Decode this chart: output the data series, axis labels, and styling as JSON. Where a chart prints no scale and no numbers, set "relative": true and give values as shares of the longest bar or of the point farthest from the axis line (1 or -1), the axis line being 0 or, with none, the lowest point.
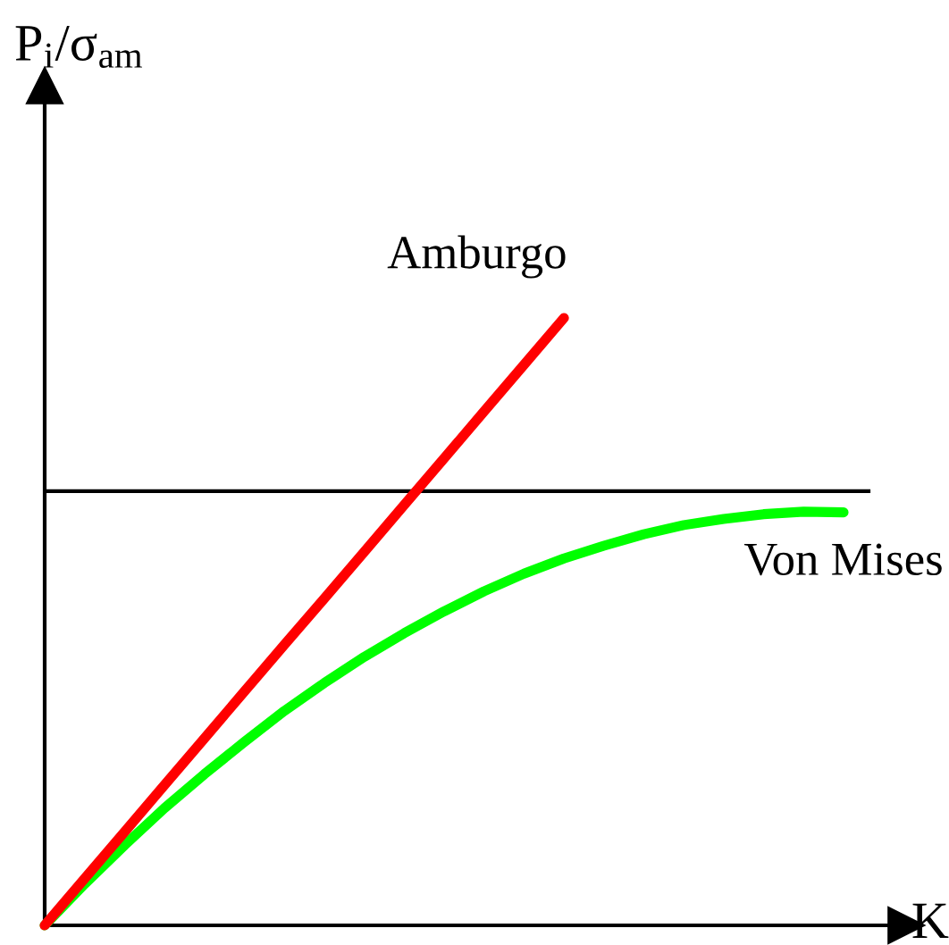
{
  "chart_data": {
    "type": "line",
    "relative": true,
    "xlabel": "K",
    "ylabel": "P$_{i}$/σ$_{am}$",
    "categories": [
      null,
      null,
      null,
      null,
      null,
      null,
      null,
      null,
      null,
      null,
      null,
      null,
      null,
      null,
      null,
      null,
      null,
      null,
      null,
      null,
      null
    ],
    "series": [
      {
        "name": "Amburgo",
        "color": "#ff0000",
        "values": [
          0,
          0.077,
          0.154,
          0.231,
          0.308,
          0.385,
          0.462,
          0.538,
          0.615,
          0.692,
          0.769,
          0.846,
          0.923,
          1,
          null,
          null,
          null,
          null,
          null,
          null,
          null
        ]
      },
      {
        "name": "Von Mises",
        "color": "#00ff00",
        "values": [
          0,
          0.068,
          0.132,
          0.193,
          0.249,
          0.302,
          0.353,
          0.399,
          0.442,
          0.481,
          0.517,
          0.55,
          0.579,
          0.604,
          0.625,
          0.644,
          0.659,
          0.669,
          0.677,
          0.681,
          0.68
        ]
      }
    ],
    "ref_lines": [
      {
        "axis": "y",
        "value": 0.715,
        "color": "#000000"
      }
    ],
    "grid": false,
    "legend": false,
    "marker": "none",
    "line_style": "solid"
  }
}
